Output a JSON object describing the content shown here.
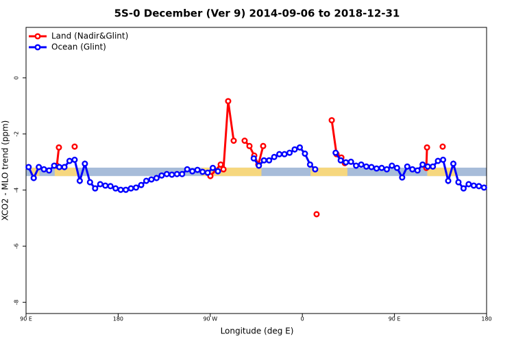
{
  "chart_data": {
    "type": "line",
    "title": "5S-0 December (Ver 9)   2014-09-06 to 2018-12-31",
    "xlabel": "Longitude (deg E)",
    "ylabel": "XCO2 - MLO trend (ppm)",
    "xlim": [
      90,
      540
    ],
    "ylim": [
      -8.4,
      1.8
    ],
    "xticks": [
      {
        "value": 90,
        "label": "90 E"
      },
      180,
      {
        "value": 270,
        "label": "90 W"
      },
      {
        "value": 360,
        "label": "0"
      },
      {
        "value": 450,
        "label": "90 E"
      },
      {
        "value": 540,
        "label": "180"
      }
    ],
    "yticks": [
      0,
      -2,
      -4,
      -6,
      -8
    ],
    "legend": "top-left",
    "band": {
      "ylim": [
        -3.5,
        -3.2
      ],
      "color": "#a7bcd9",
      "land_color": "#f6d77e",
      "land": [
        [
          95,
          103
        ],
        [
          118,
          140
        ],
        [
          262,
          320
        ],
        [
          368,
          404
        ],
        [
          482,
          510
        ]
      ]
    },
    "series": [
      {
        "name": "Land (Nadir&Glint)",
        "color": "#ff0000",
        "x": [
          120.1,
          122.1,
          130,
          137.5,
          200,
          270.1,
          280.2,
          282.9,
          287.5,
          292.9,
          300,
          303.6,
          308.3,
          313.0,
          317.0,
          321.7,
          350,
          373.9,
          380,
          388.7,
          393.4,
          398.1,
          401.5,
          450,
          481.1,
          481.8,
          490,
          497.1
        ],
        "values": [
          -3.13,
          -2.48,
          null,
          -2.45,
          null,
          -3.5,
          -3.09,
          -3.26,
          -0.83,
          -2.24,
          null,
          -2.24,
          -2.43,
          -2.77,
          -3.09,
          -2.43,
          null,
          -4.86,
          null,
          -1.51,
          -2.72,
          -2.84,
          -3.04,
          null,
          -3.21,
          -2.48,
          null,
          -2.45
        ]
      },
      {
        "name": "Ocean (Glint)",
        "color": "#0000ff",
        "x": [
          92.5,
          97.5,
          102.5,
          107.5,
          112.5,
          117.5,
          122.5,
          127.5,
          132.5,
          137.5,
          142.5,
          147.5,
          152.5,
          157.5,
          162.5,
          167.5,
          172.5,
          177.5,
          182.5,
          187.5,
          192.5,
          197.5,
          202.5,
          207.5,
          212.5,
          217.5,
          222.5,
          227.5,
          232.5,
          237.5,
          242.5,
          247.5,
          252.5,
          257.5,
          262.5,
          267.5,
          272.5,
          277.5,
          300,
          312.5,
          317.5,
          322.5,
          327.5,
          332.5,
          337.5,
          342.5,
          347.5,
          352.5,
          357.5,
          362.5,
          367.5,
          372.5,
          385,
          392.5,
          397.5,
          402.5,
          407.5,
          412.5,
          417.5,
          422.5,
          427.5,
          432.5,
          437.5,
          442.5,
          447.5,
          452.5,
          457.5,
          462.5,
          467.5,
          472.5,
          477.5,
          482.5,
          487.5,
          492.5,
          497.5,
          502.5,
          507.5,
          512.5,
          517.5,
          522.5,
          527.5,
          532.5,
          537.5
        ],
        "values": [
          -3.18,
          -3.57,
          -3.18,
          -3.26,
          -3.3,
          -3.13,
          -3.18,
          -3.18,
          -2.96,
          -2.92,
          -3.67,
          -3.06,
          -3.72,
          -3.94,
          -3.79,
          -3.84,
          -3.86,
          -3.94,
          -3.99,
          -3.99,
          -3.94,
          -3.91,
          -3.82,
          -3.67,
          -3.62,
          -3.57,
          -3.48,
          -3.43,
          -3.45,
          -3.43,
          -3.43,
          -3.26,
          -3.33,
          -3.28,
          -3.35,
          -3.38,
          -3.21,
          -3.33,
          null,
          -2.87,
          -3.13,
          -2.94,
          -2.94,
          -2.82,
          -2.72,
          -2.72,
          -2.67,
          -2.55,
          -2.48,
          -2.7,
          -3.09,
          -3.26,
          null,
          -2.67,
          -2.94,
          -3.01,
          -2.99,
          -3.13,
          -3.09,
          -3.16,
          -3.18,
          -3.23,
          -3.21,
          -3.26,
          -3.13,
          -3.21,
          -3.55,
          -3.16,
          -3.26,
          -3.3,
          -3.09,
          -3.16,
          -3.16,
          -2.96,
          -2.92,
          -3.67,
          -3.06,
          -3.72,
          -3.94,
          -3.79,
          -3.84,
          -3.86,
          -3.91
        ]
      }
    ]
  }
}
